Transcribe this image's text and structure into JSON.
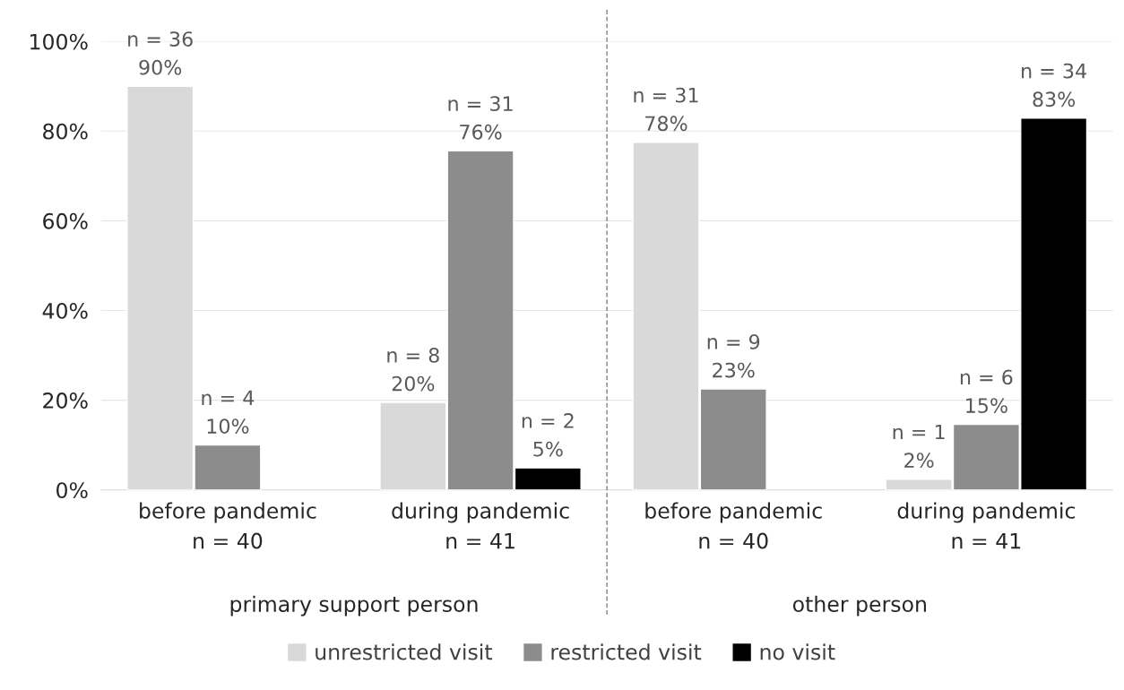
{
  "chart_data": {
    "type": "bar",
    "categories": [
      "before pandemic\nn = 40",
      "during pandemic\nn = 41",
      "before pandemic\nn = 40",
      "during pandemic\nn = 41"
    ],
    "series": [
      {
        "name": "unrestricted visit",
        "color": "#d9d9d9",
        "values": [
          90,
          19.5,
          77.5,
          2.4
        ],
        "value_labels": [
          "n = 36\n90%",
          "n = 8\n20%",
          "n = 31\n78%",
          "n = 1\n2%"
        ]
      },
      {
        "name": "restricted visit",
        "color": "#8c8c8c",
        "values": [
          10,
          75.6,
          22.5,
          14.6
        ],
        "value_labels": [
          "n = 4\n10%",
          "n = 31\n76%",
          "n = 9\n23%",
          "n = 6\n15%"
        ]
      },
      {
        "name": "no visit",
        "color": "#000000",
        "values": [
          null,
          4.9,
          null,
          82.9
        ],
        "value_labels": [
          null,
          "n = 2\n5%",
          null,
          "n = 34\n83%"
        ]
      }
    ],
    "ylim": [
      0,
      100
    ],
    "yticks": [
      {
        "value": 0,
        "label": "0%"
      },
      {
        "value": 20,
        "label": "20%"
      },
      {
        "value": 40,
        "label": "40%"
      },
      {
        "value": 60,
        "label": "60%"
      },
      {
        "value": 80,
        "label": "80%"
      },
      {
        "value": 100,
        "label": "100%"
      }
    ],
    "grid": "y",
    "legend": "bottom",
    "annotations": [
      "primary support person",
      "other person"
    ]
  }
}
